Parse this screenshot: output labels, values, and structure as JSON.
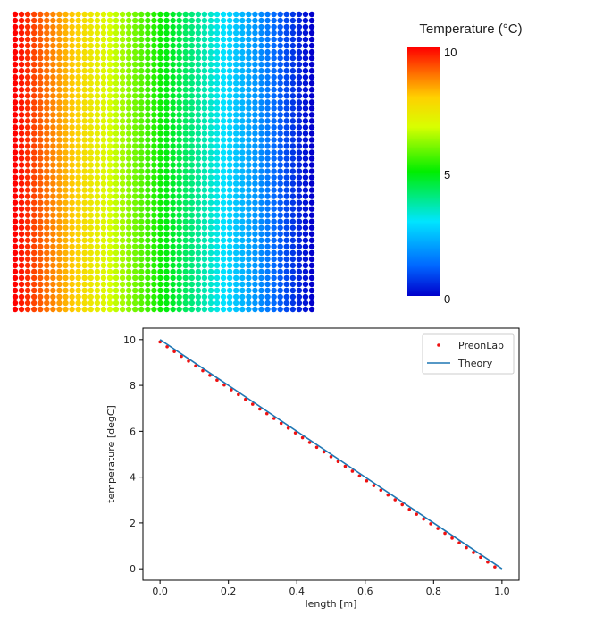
{
  "colorbar": {
    "title": "Temperature (°C)",
    "min": 0,
    "max": 10,
    "ticks": [
      "10",
      "5",
      "0"
    ]
  },
  "particle_grid": {
    "columns": 48,
    "rows": 48,
    "temperature_left": 10,
    "temperature_right": 0
  },
  "chart_data": {
    "type": "line",
    "xlabel": "length [m]",
    "ylabel": "temperature [degC]",
    "xlim": [
      -0.05,
      1.05
    ],
    "ylim": [
      -0.5,
      10.5
    ],
    "xticks": [
      "0.0",
      "0.2",
      "0.4",
      "0.6",
      "0.8",
      "1.0"
    ],
    "yticks": [
      "0",
      "2",
      "4",
      "6",
      "8",
      "10"
    ],
    "legend_position": "top-right",
    "series": [
      {
        "name": "PreonLab",
        "style": "scatter",
        "color": "#ee1111",
        "x": [
          0.0,
          0.0208,
          0.0417,
          0.0625,
          0.0833,
          0.1042,
          0.125,
          0.1458,
          0.1667,
          0.1875,
          0.2083,
          0.2292,
          0.25,
          0.2708,
          0.2917,
          0.3125,
          0.3333,
          0.3542,
          0.375,
          0.3958,
          0.4167,
          0.4375,
          0.4583,
          0.4792,
          0.5,
          0.5208,
          0.5417,
          0.5625,
          0.5833,
          0.6042,
          0.625,
          0.6458,
          0.6667,
          0.6875,
          0.7083,
          0.7292,
          0.75,
          0.7708,
          0.7917,
          0.8125,
          0.8333,
          0.8542,
          0.875,
          0.8958,
          0.9167,
          0.9375,
          0.9583,
          0.9792
        ],
        "y": [
          9.9,
          9.69,
          9.48,
          9.27,
          9.06,
          8.85,
          8.64,
          8.44,
          8.23,
          8.02,
          7.81,
          7.6,
          7.39,
          7.18,
          6.97,
          6.77,
          6.56,
          6.35,
          6.14,
          5.93,
          5.72,
          5.51,
          5.3,
          5.1,
          4.89,
          4.68,
          4.47,
          4.26,
          4.05,
          3.84,
          3.63,
          3.43,
          3.22,
          3.01,
          2.8,
          2.59,
          2.38,
          2.17,
          1.96,
          1.76,
          1.55,
          1.34,
          1.13,
          0.92,
          0.71,
          0.5,
          0.29,
          0.08
        ]
      },
      {
        "name": "Theory",
        "style": "line",
        "color": "#1f77b4",
        "x": [
          0.0,
          1.0
        ],
        "y": [
          10.0,
          0.0
        ]
      }
    ]
  }
}
